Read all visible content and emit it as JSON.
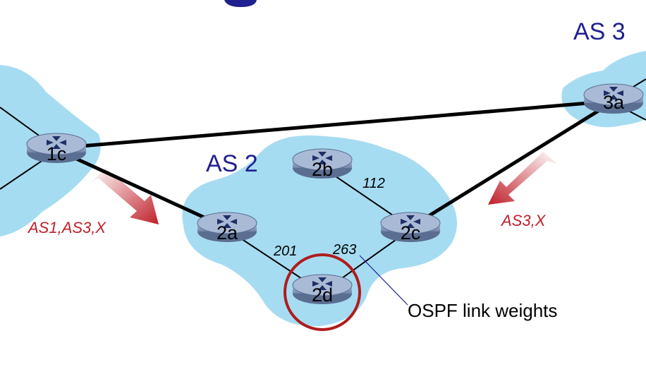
{
  "as_labels": {
    "as2": "AS 2",
    "as3": "AS 3"
  },
  "routers": {
    "r1c": "1c",
    "r3a": "3a",
    "r2a": "2a",
    "r2b": "2b",
    "r2c": "2c",
    "r2d": "2d"
  },
  "weights": {
    "w2b2c": "112",
    "w2a2d": "201",
    "w2d2c": "263"
  },
  "advertisements": {
    "from_as1": "AS1,AS3,X",
    "from_as3": "AS3,X"
  },
  "caption": "OSPF link weights",
  "colors": {
    "cloud": "#a6dcf2",
    "router_body": "#8fa3c4",
    "advert_text": "#c0202a",
    "highlight_circle": "#b01c1c",
    "as_label": "#1f1f8f"
  }
}
